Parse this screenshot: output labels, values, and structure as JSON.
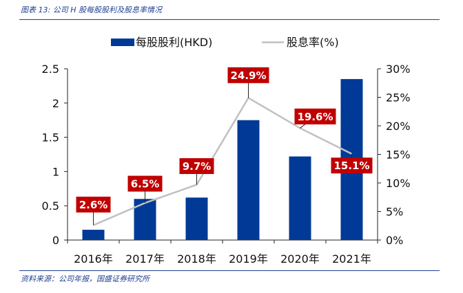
{
  "figure": {
    "title": "图表 13: 公司 H 股每股股利及股息率情况",
    "source": "资料来源：公司年报，国盛证券研究所"
  },
  "chart_data": {
    "type": "bar",
    "categories": [
      "2016年",
      "2017年",
      "2018年",
      "2019年",
      "2020年",
      "2021年"
    ],
    "series": [
      {
        "name": "每股股利(HKD)",
        "type": "bar",
        "axis": "left",
        "color": "#003a96",
        "values": [
          0.15,
          0.6,
          0.62,
          1.75,
          1.22,
          2.35
        ]
      },
      {
        "name": "股息率(%)",
        "type": "line",
        "axis": "right",
        "color": "#c0c0c0",
        "values": [
          2.6,
          6.5,
          9.7,
          24.9,
          19.6,
          15.1
        ]
      }
    ],
    "data_labels": [
      "2.6%",
      "6.5%",
      "9.7%",
      "24.9%",
      "19.6%",
      "15.1%"
    ],
    "label_color": "#c00000",
    "y_left": {
      "ylim": [
        0,
        2.5
      ],
      "ticks": [
        "0",
        "0.5",
        "1",
        "1.5",
        "2",
        "2.5"
      ]
    },
    "y_right": {
      "ylim": [
        0,
        30
      ],
      "ticks": [
        "0%",
        "5%",
        "10%",
        "15%",
        "20%",
        "25%",
        "30%"
      ]
    },
    "legend": "top-center",
    "grid": false
  }
}
